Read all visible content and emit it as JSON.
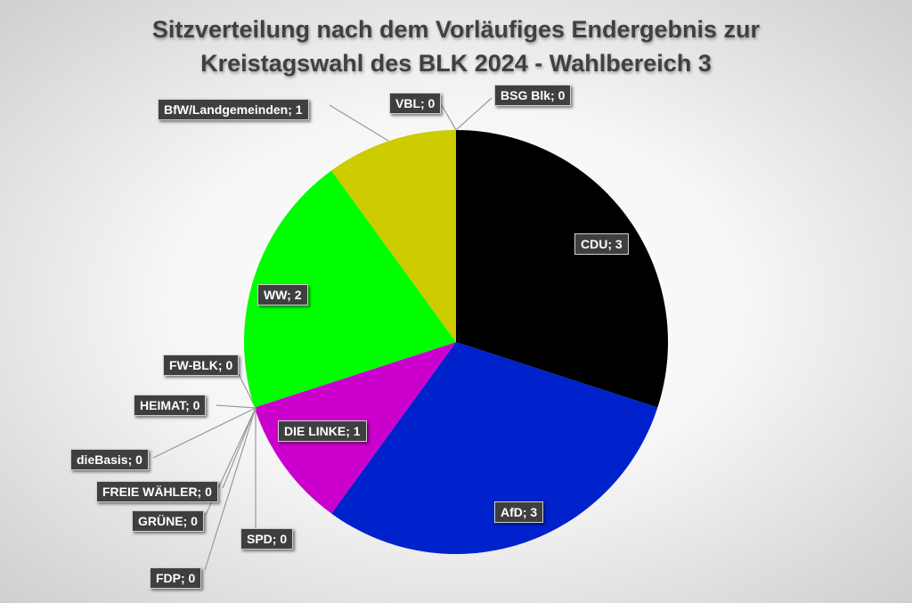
{
  "chart_data": {
    "type": "pie",
    "title_lines": [
      "Sitzverteilung nach dem Vorläufiges Endergebnis zur",
      "Kreistagswahl des BLK 2024 - Wahlbereich 3"
    ],
    "slices": [
      {
        "name": "CDU",
        "value": 3,
        "label": "CDU; 3",
        "color": "#000000"
      },
      {
        "name": "AfD",
        "value": 3,
        "label": "AfD; 3",
        "color": "#0022cc"
      },
      {
        "name": "DIE LINKE",
        "value": 1,
        "label": "DIE LINKE; 1",
        "color": "#cc00cc"
      },
      {
        "name": "SPD",
        "value": 0,
        "label": "SPD; 0",
        "color": "#999999"
      },
      {
        "name": "FDP",
        "value": 0,
        "label": "FDP; 0",
        "color": "#999999"
      },
      {
        "name": "GRÜNE",
        "value": 0,
        "label": "GRÜNE; 0",
        "color": "#999999"
      },
      {
        "name": "FREIE WÄHLER",
        "value": 0,
        "label": "FREIE WÄHLER; 0",
        "color": "#999999"
      },
      {
        "name": "dieBasis",
        "value": 0,
        "label": "dieBasis; 0",
        "color": "#999999"
      },
      {
        "name": "HEIMAT",
        "value": 0,
        "label": "HEIMAT; 0",
        "color": "#999999"
      },
      {
        "name": "FW-BLK",
        "value": 0,
        "label": "FW-BLK; 0",
        "color": "#999999"
      },
      {
        "name": "WW",
        "value": 2,
        "label": "WW; 2",
        "color": "#00ff00"
      },
      {
        "name": "BfW/Landgemeinden",
        "value": 1,
        "label": "BfW/Landgemeinden; 1",
        "color": "#cccc00"
      },
      {
        "name": "VBL",
        "value": 0,
        "label": "VBL; 0",
        "color": "#999999"
      },
      {
        "name": "BSG Blk",
        "value": 0,
        "label": "BSG Blk; 0",
        "color": "#999999"
      }
    ],
    "legend": "none"
  }
}
